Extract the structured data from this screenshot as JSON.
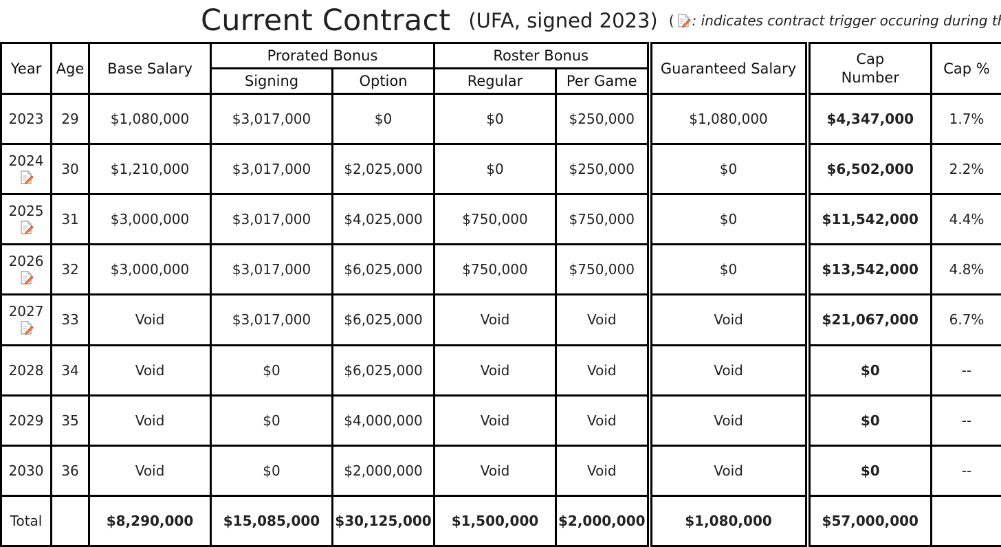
{
  "title": {
    "main": "Current Contract",
    "sub": "(UFA, signed 2023)",
    "note_open": "(",
    "note_text": ": indicates contract trigger occuring during th",
    "note_icon": "contract-trigger-icon"
  },
  "headers": {
    "year": "Year",
    "age": "Age",
    "base_salary": "Base Salary",
    "prorated_bonus": "Prorated Bonus",
    "signing": "Signing",
    "option": "Option",
    "roster_bonus": "Roster Bonus",
    "regular": "Regular",
    "per_game": "Per Game",
    "guaranteed_salary": "Guaranteed Salary",
    "cap_number_line1": "Cap",
    "cap_number_line2": "Number",
    "cap_pct": "Cap %"
  },
  "rows": [
    {
      "year": "2023",
      "trigger": false,
      "age": "29",
      "base_salary": "$1,080,000",
      "signing": "$3,017,000",
      "option": "$0",
      "regular": "$0",
      "per_game": "$250,000",
      "guaranteed": "$1,080,000",
      "cap_number": "$4,347,000",
      "cap_pct": "1.7%"
    },
    {
      "year": "2024",
      "trigger": true,
      "age": "30",
      "base_salary": "$1,210,000",
      "signing": "$3,017,000",
      "option": "$2,025,000",
      "regular": "$0",
      "per_game": "$250,000",
      "guaranteed": "$0",
      "cap_number": "$6,502,000",
      "cap_pct": "2.2%"
    },
    {
      "year": "2025",
      "trigger": true,
      "age": "31",
      "base_salary": "$3,000,000",
      "signing": "$3,017,000",
      "option": "$4,025,000",
      "regular": "$750,000",
      "per_game": "$750,000",
      "guaranteed": "$0",
      "cap_number": "$11,542,000",
      "cap_pct": "4.4%"
    },
    {
      "year": "2026",
      "trigger": true,
      "age": "32",
      "base_salary": "$3,000,000",
      "signing": "$3,017,000",
      "option": "$6,025,000",
      "regular": "$750,000",
      "per_game": "$750,000",
      "guaranteed": "$0",
      "cap_number": "$13,542,000",
      "cap_pct": "4.8%"
    },
    {
      "year": "2027",
      "trigger": true,
      "age": "33",
      "base_salary": "Void",
      "signing": "$3,017,000",
      "option": "$6,025,000",
      "regular": "Void",
      "per_game": "Void",
      "guaranteed": "Void",
      "cap_number": "$21,067,000",
      "cap_pct": "6.7%"
    },
    {
      "year": "2028",
      "trigger": false,
      "age": "34",
      "base_salary": "Void",
      "signing": "$0",
      "option": "$6,025,000",
      "regular": "Void",
      "per_game": "Void",
      "guaranteed": "Void",
      "cap_number": "$0",
      "cap_pct": "--"
    },
    {
      "year": "2029",
      "trigger": false,
      "age": "35",
      "base_salary": "Void",
      "signing": "$0",
      "option": "$4,000,000",
      "regular": "Void",
      "per_game": "Void",
      "guaranteed": "Void",
      "cap_number": "$0",
      "cap_pct": "--"
    },
    {
      "year": "2030",
      "trigger": false,
      "age": "36",
      "base_salary": "Void",
      "signing": "$0",
      "option": "$2,000,000",
      "regular": "Void",
      "per_game": "Void",
      "guaranteed": "Void",
      "cap_number": "$0",
      "cap_pct": "--"
    }
  ],
  "totals": {
    "label": "Total",
    "age": "",
    "base_salary": "$8,290,000",
    "signing": "$15,085,000",
    "option": "$30,125,000",
    "regular": "$1,500,000",
    "per_game": "$2,000,000",
    "guaranteed": "$1,080,000",
    "cap_number": "$57,000,000",
    "cap_pct": ""
  }
}
